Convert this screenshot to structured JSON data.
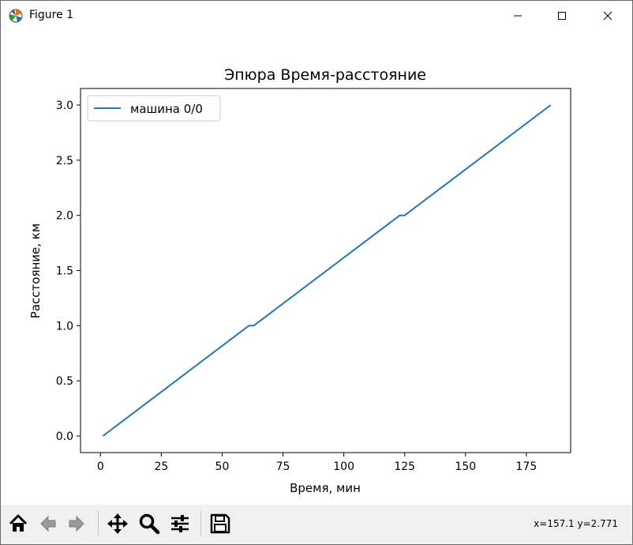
{
  "window": {
    "title": "Figure 1",
    "icons": {
      "app": "matplotlib-icon",
      "minimize": "minimize-icon",
      "maximize": "maximize-icon",
      "close": "close-icon"
    }
  },
  "toolbar": {
    "buttons": [
      {
        "name": "home",
        "icon": "home-icon"
      },
      {
        "name": "back",
        "icon": "arrow-left-icon"
      },
      {
        "name": "forward",
        "icon": "arrow-right-icon"
      },
      {
        "name": "pan",
        "icon": "move-icon"
      },
      {
        "name": "zoom",
        "icon": "magnifier-icon"
      },
      {
        "name": "configure",
        "icon": "sliders-icon"
      },
      {
        "name": "save",
        "icon": "floppy-disk-icon"
      }
    ],
    "coordinates": "x=157.1 y=2.771"
  },
  "chart_data": {
    "type": "line",
    "title": "Эпюра Время-расстояние",
    "xlabel": "Время, мин",
    "ylabel": "Расстояние, км",
    "xlim": [
      -8.2,
      193.2
    ],
    "ylim": [
      -0.15,
      3.15
    ],
    "xticks": [
      0,
      25,
      50,
      75,
      100,
      125,
      150,
      175
    ],
    "yticks": [
      0.0,
      0.5,
      1.0,
      1.5,
      2.0,
      2.5,
      3.0
    ],
    "xtick_labels": [
      "0",
      "25",
      "50",
      "75",
      "100",
      "125",
      "150",
      "175"
    ],
    "ytick_labels": [
      "0.0",
      "0.5",
      "1.0",
      "1.5",
      "2.0",
      "2.5",
      "3.0"
    ],
    "grid": false,
    "legend_position": "upper left",
    "series": [
      {
        "name": "машина 0/0",
        "color": "#1f77b4",
        "x": [
          1,
          61,
          63,
          123,
          125,
          185
        ],
        "y": [
          0.0,
          1.0,
          1.0,
          2.0,
          2.0,
          3.0
        ]
      }
    ]
  }
}
